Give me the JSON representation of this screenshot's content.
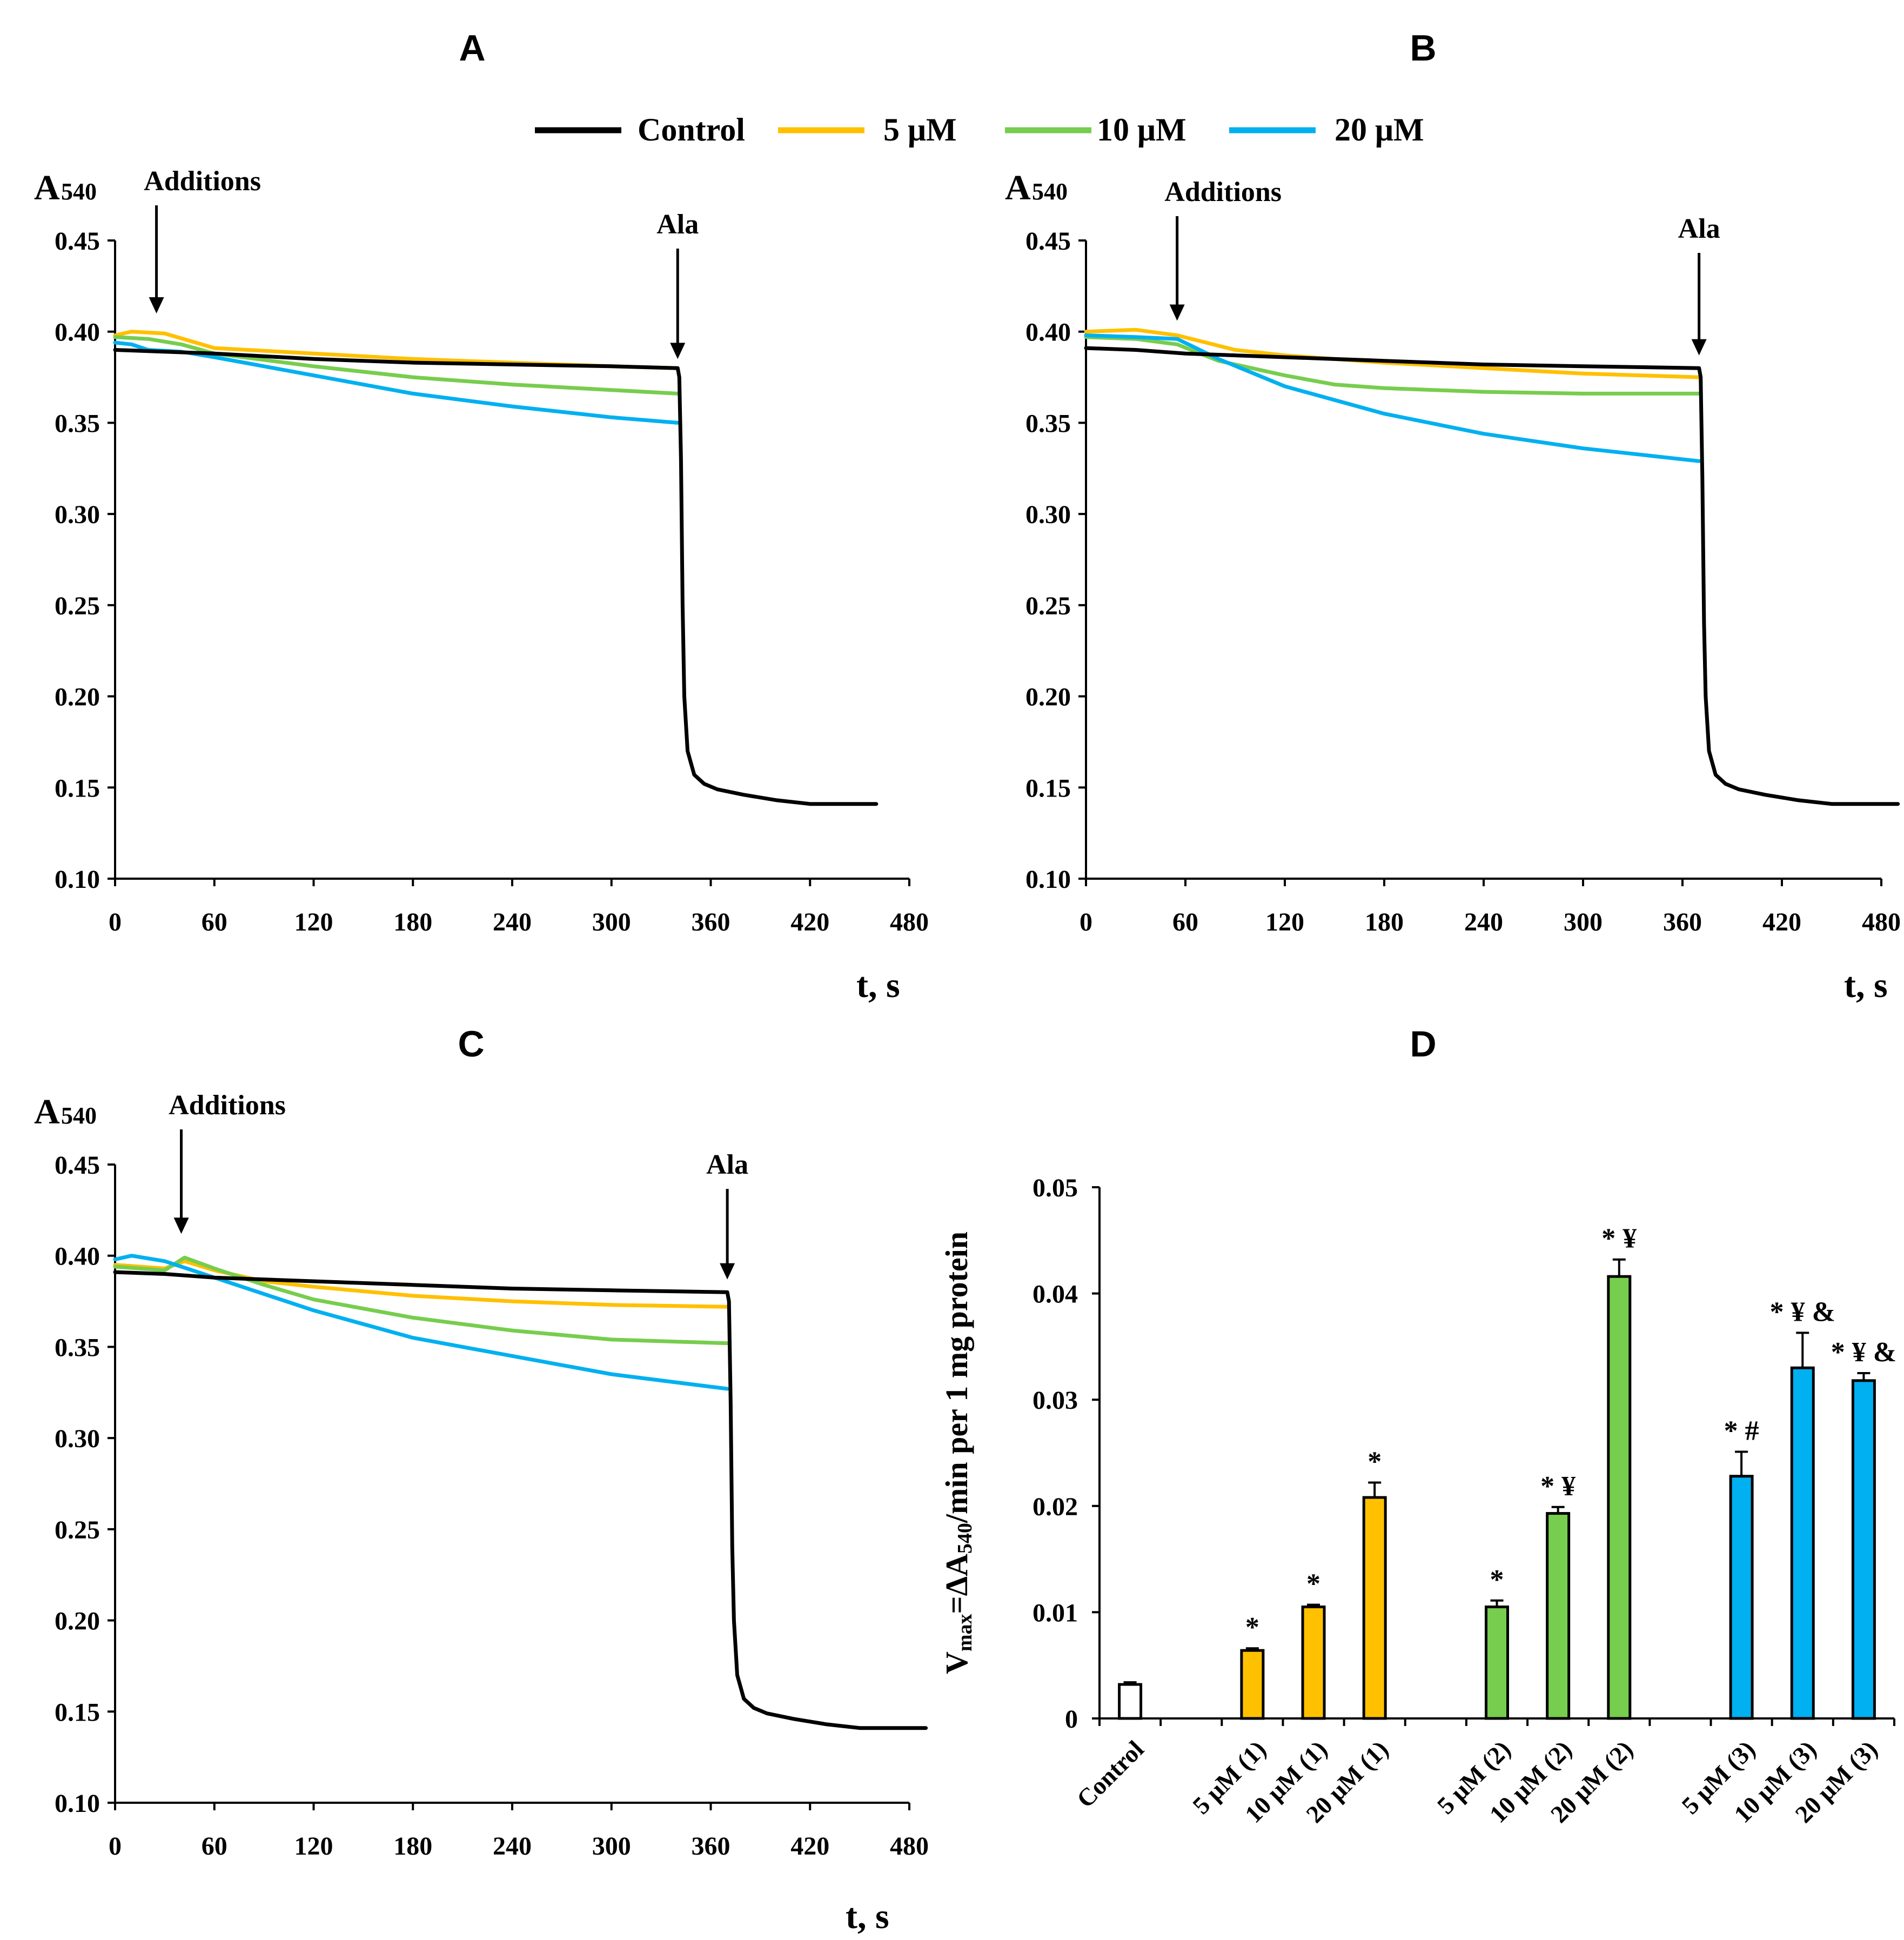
{
  "colors": {
    "control": "#000000",
    "c5": "#FFC000",
    "c10": "#77CD4E",
    "c20": "#00B0F0",
    "control_bar": "#FFFFFF"
  },
  "legend": [
    {
      "key": "control",
      "label": "Control"
    },
    {
      "key": "c5",
      "label": "5 μM"
    },
    {
      "key": "c10",
      "label": "10 μM"
    },
    {
      "key": "c20",
      "label": "20 μM"
    }
  ],
  "chart_data": [
    {
      "panel": "A",
      "type": "line",
      "ylabel_main": "A",
      "ylabel_sub": "540",
      "xlabel": "t, s",
      "xlim": [
        0,
        480
      ],
      "ylim": [
        0.1,
        0.45
      ],
      "xticks": [
        0,
        60,
        120,
        180,
        240,
        300,
        360,
        420,
        480
      ],
      "yticks": [
        0.1,
        0.15,
        0.2,
        0.25,
        0.3,
        0.35,
        0.4,
        0.45
      ],
      "ytick_labels": [
        "0.10",
        "0.15",
        "0.20",
        "0.25",
        "0.30",
        "0.35",
        "0.40",
        "0.45"
      ],
      "annotations": [
        {
          "text": "Additions",
          "x": 25,
          "y_tip": 0.41
        },
        {
          "text": "Ala",
          "x": 340,
          "y_tip": 0.385
        }
      ],
      "series": [
        {
          "key": "c5",
          "points": [
            [
              0,
              0.398
            ],
            [
              10,
              0.4
            ],
            [
              30,
              0.399
            ],
            [
              60,
              0.391
            ],
            [
              120,
              0.388
            ],
            [
              180,
              0.385
            ],
            [
              240,
              0.383
            ],
            [
              300,
              0.381
            ],
            [
              340,
              0.38
            ]
          ]
        },
        {
          "key": "c10",
          "points": [
            [
              0,
              0.397
            ],
            [
              20,
              0.396
            ],
            [
              40,
              0.393
            ],
            [
              60,
              0.388
            ],
            [
              120,
              0.381
            ],
            [
              180,
              0.375
            ],
            [
              240,
              0.371
            ],
            [
              300,
              0.368
            ],
            [
              340,
              0.366
            ]
          ]
        },
        {
          "key": "c20",
          "points": [
            [
              0,
              0.394
            ],
            [
              10,
              0.393
            ],
            [
              20,
              0.39
            ],
            [
              40,
              0.389
            ],
            [
              60,
              0.386
            ],
            [
              120,
              0.376
            ],
            [
              180,
              0.366
            ],
            [
              240,
              0.359
            ],
            [
              300,
              0.353
            ],
            [
              340,
              0.35
            ]
          ]
        },
        {
          "key": "control",
          "points": [
            [
              0,
              0.39
            ],
            [
              60,
              0.388
            ],
            [
              120,
              0.385
            ],
            [
              180,
              0.383
            ],
            [
              240,
              0.382
            ],
            [
              300,
              0.381
            ],
            [
              340,
              0.38
            ],
            [
              341,
              0.375
            ],
            [
              342,
              0.33
            ],
            [
              343,
              0.25
            ],
            [
              344,
              0.2
            ],
            [
              346,
              0.17
            ],
            [
              350,
              0.157
            ],
            [
              356,
              0.152
            ],
            [
              364,
              0.149
            ],
            [
              380,
              0.146
            ],
            [
              400,
              0.143
            ],
            [
              420,
              0.141
            ],
            [
              440,
              0.141
            ],
            [
              460,
              0.141
            ]
          ]
        }
      ]
    },
    {
      "panel": "B",
      "type": "line",
      "ylabel_main": "A",
      "ylabel_sub": "540",
      "xlabel": "t, s",
      "xlim": [
        0,
        480
      ],
      "ylim": [
        0.1,
        0.45
      ],
      "xticks": [
        0,
        60,
        120,
        180,
        240,
        300,
        360,
        420,
        480
      ],
      "yticks": [
        0.1,
        0.15,
        0.2,
        0.25,
        0.3,
        0.35,
        0.4,
        0.45
      ],
      "ytick_labels": [
        "0.10",
        "0.15",
        "0.20",
        "0.25",
        "0.30",
        "0.35",
        "0.40",
        "0.45"
      ],
      "annotations": [
        {
          "text": "Additions",
          "x": 55,
          "y_tip": 0.406
        },
        {
          "text": "Ala",
          "x": 370,
          "y_tip": 0.387
        }
      ],
      "series": [
        {
          "key": "c5",
          "points": [
            [
              0,
              0.4
            ],
            [
              30,
              0.401
            ],
            [
              55,
              0.398
            ],
            [
              90,
              0.39
            ],
            [
              120,
              0.387
            ],
            [
              180,
              0.383
            ],
            [
              240,
              0.38
            ],
            [
              300,
              0.377
            ],
            [
              370,
              0.375
            ]
          ]
        },
        {
          "key": "c10",
          "points": [
            [
              0,
              0.397
            ],
            [
              30,
              0.396
            ],
            [
              55,
              0.393
            ],
            [
              80,
              0.384
            ],
            [
              120,
              0.376
            ],
            [
              150,
              0.371
            ],
            [
              180,
              0.369
            ],
            [
              240,
              0.367
            ],
            [
              300,
              0.366
            ],
            [
              370,
              0.366
            ]
          ]
        },
        {
          "key": "c20",
          "points": [
            [
              0,
              0.398
            ],
            [
              30,
              0.397
            ],
            [
              55,
              0.396
            ],
            [
              80,
              0.385
            ],
            [
              120,
              0.37
            ],
            [
              180,
              0.355
            ],
            [
              240,
              0.344
            ],
            [
              300,
              0.336
            ],
            [
              370,
              0.329
            ]
          ]
        },
        {
          "key": "control",
          "points": [
            [
              0,
              0.391
            ],
            [
              30,
              0.39
            ],
            [
              60,
              0.388
            ],
            [
              120,
              0.386
            ],
            [
              180,
              0.384
            ],
            [
              240,
              0.382
            ],
            [
              300,
              0.381
            ],
            [
              370,
              0.38
            ],
            [
              371,
              0.375
            ],
            [
              372,
              0.32
            ],
            [
              373,
              0.24
            ],
            [
              374,
              0.2
            ],
            [
              376,
              0.17
            ],
            [
              380,
              0.157
            ],
            [
              386,
              0.152
            ],
            [
              394,
              0.149
            ],
            [
              410,
              0.146
            ],
            [
              430,
              0.143
            ],
            [
              450,
              0.141
            ],
            [
              490,
              0.141
            ]
          ]
        }
      ]
    },
    {
      "panel": "C",
      "type": "line",
      "ylabel_main": "A",
      "ylabel_sub": "540",
      "xlabel": "t, s",
      "xlim": [
        0,
        480
      ],
      "ylim": [
        0.1,
        0.45
      ],
      "xticks": [
        0,
        60,
        120,
        180,
        240,
        300,
        360,
        420,
        480
      ],
      "yticks": [
        0.1,
        0.15,
        0.2,
        0.25,
        0.3,
        0.35,
        0.4,
        0.45
      ],
      "ytick_labels": [
        "0.10",
        "0.15",
        "0.20",
        "0.25",
        "0.30",
        "0.35",
        "0.40",
        "0.45"
      ],
      "annotations": [
        {
          "text": "Additions",
          "x": 40,
          "y_tip": 0.412
        },
        {
          "text": "Ala",
          "x": 370,
          "y_tip": 0.387
        }
      ],
      "series": [
        {
          "key": "c5",
          "points": [
            [
              0,
              0.395
            ],
            [
              30,
              0.393
            ],
            [
              42,
              0.397
            ],
            [
              60,
              0.392
            ],
            [
              90,
              0.386
            ],
            [
              120,
              0.383
            ],
            [
              180,
              0.378
            ],
            [
              240,
              0.375
            ],
            [
              300,
              0.373
            ],
            [
              370,
              0.372
            ]
          ]
        },
        {
          "key": "c10",
          "points": [
            [
              0,
              0.394
            ],
            [
              30,
              0.392
            ],
            [
              42,
              0.399
            ],
            [
              60,
              0.393
            ],
            [
              90,
              0.384
            ],
            [
              120,
              0.376
            ],
            [
              180,
              0.366
            ],
            [
              240,
              0.359
            ],
            [
              300,
              0.354
            ],
            [
              370,
              0.352
            ]
          ]
        },
        {
          "key": "c20",
          "points": [
            [
              0,
              0.398
            ],
            [
              10,
              0.4
            ],
            [
              30,
              0.397
            ],
            [
              60,
              0.388
            ],
            [
              120,
              0.37
            ],
            [
              180,
              0.355
            ],
            [
              240,
              0.345
            ],
            [
              300,
              0.335
            ],
            [
              370,
              0.327
            ]
          ]
        },
        {
          "key": "control",
          "points": [
            [
              0,
              0.391
            ],
            [
              30,
              0.39
            ],
            [
              60,
              0.388
            ],
            [
              120,
              0.386
            ],
            [
              180,
              0.384
            ],
            [
              240,
              0.382
            ],
            [
              300,
              0.381
            ],
            [
              370,
              0.38
            ],
            [
              371,
              0.375
            ],
            [
              372,
              0.32
            ],
            [
              373,
              0.24
            ],
            [
              374,
              0.2
            ],
            [
              376,
              0.17
            ],
            [
              380,
              0.157
            ],
            [
              386,
              0.152
            ],
            [
              394,
              0.149
            ],
            [
              410,
              0.146
            ],
            [
              430,
              0.143
            ],
            [
              450,
              0.141
            ],
            [
              490,
              0.141
            ]
          ]
        }
      ]
    },
    {
      "panel": "D",
      "type": "bar",
      "ylabel": "Vₘₐₓ=ΔA₅₄₀/min per 1 mg protein",
      "ylabel_main": "V",
      "ylabel_sub1": "max",
      "ylabel_mid": "=ΔA",
      "ylabel_sub2": "540",
      "ylabel_end": "/min per 1 mg protein",
      "ylim": [
        0,
        0.05
      ],
      "yticks": [
        0,
        0.01,
        0.02,
        0.03,
        0.04,
        0.05
      ],
      "ytick_labels": [
        "0",
        "0.01",
        "0.02",
        "0.03",
        "0.04",
        "0.05"
      ],
      "categories": [
        "Control",
        "5 μM (1)",
        "10 μM (1)",
        "20 μM (1)",
        "5 μM (2)",
        "10 μM (2)",
        "20 μM (2)",
        "5 μM (3)",
        "10 μM (3)",
        "20 μM (3)"
      ],
      "positions": [
        0,
        2,
        3,
        4,
        6,
        7,
        8,
        10,
        11,
        12
      ],
      "color_keys": [
        "control_bar",
        "c5",
        "c5",
        "c5",
        "c10",
        "c10",
        "c10",
        "c20",
        "c20",
        "c20"
      ],
      "values": [
        0.0032,
        0.0064,
        0.0105,
        0.0208,
        0.0105,
        0.0193,
        0.0416,
        0.0228,
        0.033,
        0.0318
      ],
      "errors": [
        0.0002,
        0.0002,
        0.0002,
        0.0014,
        0.0006,
        0.0006,
        0.0016,
        0.0023,
        0.0033,
        0.0007
      ],
      "sig_labels": [
        "",
        "*",
        "*",
        "*",
        "*",
        "* ¥",
        "* ¥",
        "* #",
        "* ¥ &",
        "* ¥ &"
      ]
    }
  ]
}
